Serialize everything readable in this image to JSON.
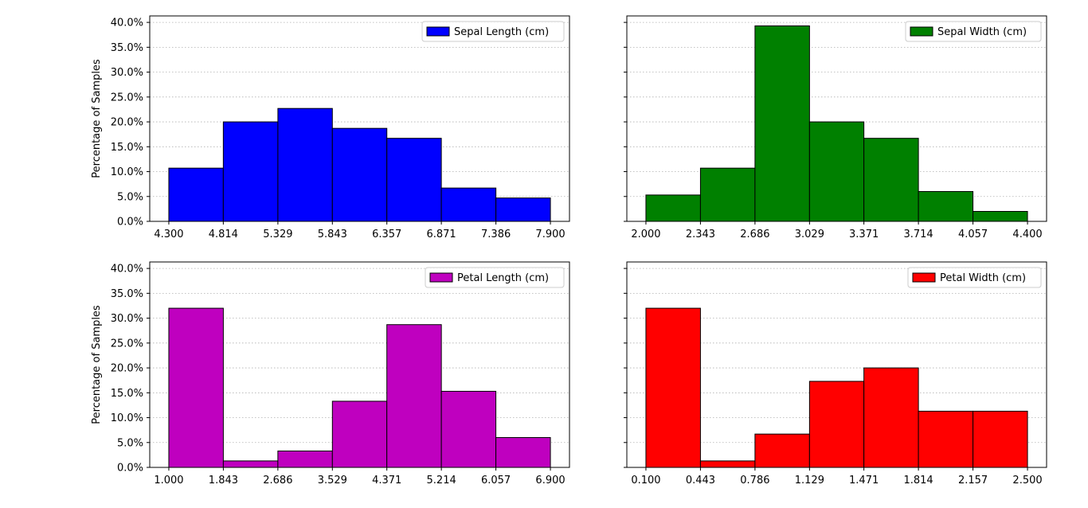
{
  "chart_data": [
    {
      "type": "bar",
      "series": [
        {
          "name": "Sepal Length (cm)",
          "values": [
            10.7,
            20.0,
            22.7,
            18.7,
            16.7,
            6.7,
            4.7
          ],
          "color": "#0000ff"
        }
      ],
      "bin_edges": [
        4.3,
        4.814,
        5.329,
        5.843,
        6.357,
        6.871,
        7.386,
        7.9
      ],
      "x_tick_labels": [
        "4.300",
        "4.814",
        "5.329",
        "5.843",
        "6.357",
        "6.871",
        "7.386",
        "7.900"
      ],
      "y_tick_labels": [
        "0.0%",
        "5.0%",
        "10.0%",
        "15.0%",
        "20.0%",
        "25.0%",
        "30.0%",
        "35.0%",
        "40.0%"
      ],
      "ylabel": "Percentage of Samples",
      "xlim": [
        4.12,
        8.08
      ],
      "ylim": [
        0,
        41.3
      ],
      "grid": "y-dotted",
      "legend": "top-right"
    },
    {
      "type": "bar",
      "series": [
        {
          "name": "Sepal Width (cm)",
          "values": [
            5.3,
            10.7,
            39.3,
            20.0,
            16.7,
            6.0,
            2.0
          ],
          "color": "#008000"
        }
      ],
      "bin_edges": [
        2.0,
        2.343,
        2.686,
        3.029,
        3.371,
        3.714,
        4.057,
        4.4
      ],
      "x_tick_labels": [
        "2.000",
        "2.343",
        "2.686",
        "3.029",
        "3.371",
        "3.714",
        "4.057",
        "4.400"
      ],
      "y_tick_labels": [],
      "ylabel": "",
      "xlim": [
        1.88,
        4.52
      ],
      "ylim": [
        0,
        41.3
      ],
      "grid": "y-dotted",
      "legend": "top-right"
    },
    {
      "type": "bar",
      "series": [
        {
          "name": "Petal Length (cm)",
          "values": [
            32.0,
            1.3,
            3.3,
            13.3,
            28.7,
            15.3,
            6.0
          ],
          "color": "#bf00bf"
        }
      ],
      "bin_edges": [
        1.0,
        1.843,
        2.686,
        3.529,
        4.371,
        5.214,
        6.057,
        6.9
      ],
      "x_tick_labels": [
        "1.000",
        "1.843",
        "2.686",
        "3.529",
        "4.371",
        "5.214",
        "6.057",
        "6.900"
      ],
      "y_tick_labels": [
        "0.0%",
        "5.0%",
        "10.0%",
        "15.0%",
        "20.0%",
        "25.0%",
        "30.0%",
        "35.0%",
        "40.0%"
      ],
      "ylabel": "Percentage of Samples",
      "xlim": [
        0.705,
        7.195
      ],
      "ylim": [
        0,
        41.3
      ],
      "grid": "y-dotted",
      "legend": "top-right"
    },
    {
      "type": "bar",
      "series": [
        {
          "name": "Petal Width (cm)",
          "values": [
            32.0,
            1.3,
            6.7,
            17.3,
            20.0,
            11.3,
            11.3
          ],
          "color": "#ff0000"
        }
      ],
      "bin_edges": [
        0.1,
        0.443,
        0.786,
        1.129,
        1.471,
        1.814,
        2.157,
        2.5
      ],
      "x_tick_labels": [
        "0.100",
        "0.443",
        "0.786",
        "1.129",
        "1.471",
        "1.814",
        "2.157",
        "2.500"
      ],
      "y_tick_labels": [],
      "ylabel": "",
      "xlim": [
        -0.02,
        2.62
      ],
      "ylim": [
        0,
        41.3
      ],
      "grid": "y-dotted",
      "legend": "top-right"
    }
  ]
}
